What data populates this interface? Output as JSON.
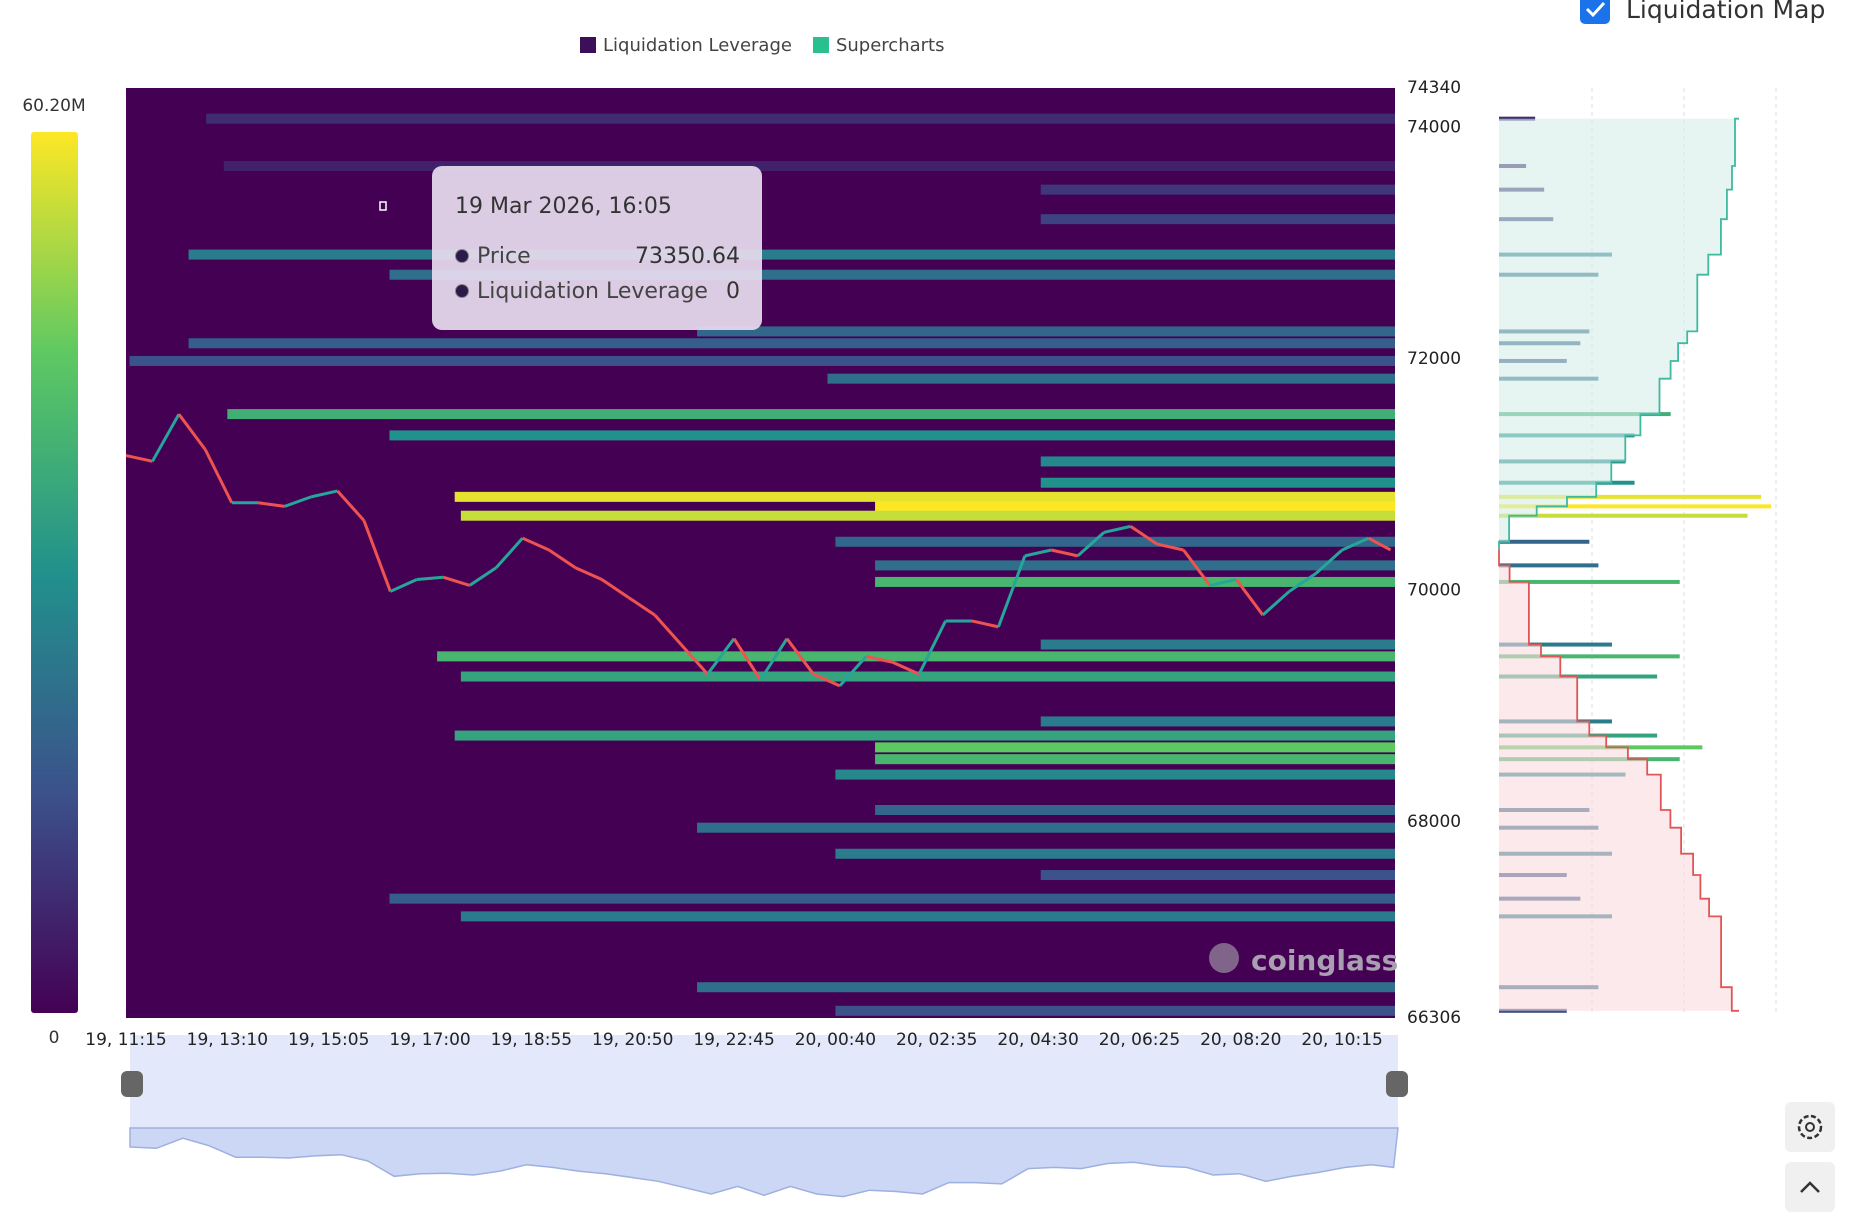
{
  "chart_data": {
    "type": "heatmap",
    "legend": [
      {
        "name": "Liquidation Leverage",
        "color": "#3b0f5a"
      },
      {
        "name": "Supercharts",
        "color": "#2bbf8f"
      }
    ],
    "toggle": {
      "label": "Liquidation Map",
      "checked": true
    },
    "watermark": "coinglass",
    "colorbar": {
      "range": [
        0,
        60200000
      ],
      "ticks": [
        {
          "value": 60200000,
          "label": "60.20M"
        },
        0
      ]
    },
    "ylim": [
      66306,
      74340
    ],
    "yticks": [
      74340,
      74000,
      72000,
      70000,
      68000,
      66306
    ],
    "xlim": [
      "19, 11:15",
      "20, 11:15"
    ],
    "xticks": [
      "19, 11:15",
      "19, 13:10",
      "19, 15:05",
      "19, 17:00",
      "19, 18:55",
      "19, 20:50",
      "19, 22:45",
      "20, 00:40",
      "20, 02:35",
      "20, 04:30",
      "20, 06:25",
      "20, 08:20",
      "20, 10:15"
    ],
    "up_color": "#26a69a",
    "down_color": "#ef5350",
    "series": [
      {
        "name": "Price",
        "x": [
          "19, 11:15",
          "19, 11:45",
          "19, 12:15",
          "19, 12:45",
          "19, 13:15",
          "19, 13:45",
          "19, 14:15",
          "19, 14:45",
          "19, 15:15",
          "19, 15:45",
          "19, 16:15",
          "19, 16:45",
          "19, 17:15",
          "19, 17:45",
          "19, 18:15",
          "19, 18:45",
          "19, 19:15",
          "19, 19:45",
          "19, 20:15",
          "19, 20:45",
          "19, 21:15",
          "19, 21:45",
          "19, 22:15",
          "19, 22:45",
          "19, 23:15",
          "19, 23:45",
          "20, 00:15",
          "20, 00:45",
          "20, 01:15",
          "20, 01:45",
          "20, 02:15",
          "20, 02:45",
          "20, 03:15",
          "20, 03:45",
          "20, 04:15",
          "20, 04:45",
          "20, 05:15",
          "20, 05:45",
          "20, 06:15",
          "20, 06:45",
          "20, 07:15",
          "20, 07:45",
          "20, 08:15",
          "20, 08:45",
          "20, 09:15",
          "20, 09:45",
          "20, 10:15",
          "20, 10:45",
          "20, 11:10"
        ],
        "values": [
          71165,
          71115,
          71522,
          71216,
          70757,
          70757,
          70726,
          70808,
          70859,
          70604,
          69991,
          70094,
          70114,
          70043,
          70196,
          70451,
          70349,
          70196,
          70094,
          69940,
          69787,
          69532,
          69277,
          69583,
          69226,
          69583,
          69277,
          69175,
          69430,
          69379,
          69277,
          69736,
          69736,
          69685,
          70298,
          70349,
          70298,
          70502,
          70553,
          70400,
          70349,
          70043,
          70094,
          69787,
          69991,
          70145,
          70349,
          70451,
          70349
        ]
      }
    ],
    "bands": [
      {
        "price": 74075,
        "start": "19, 12:46",
        "value": 8000000
      },
      {
        "price": 73666,
        "start": "19, 13:06",
        "value": 6000000
      },
      {
        "price": 73462,
        "start": "20, 04:33",
        "value": 10000000
      },
      {
        "price": 73207,
        "start": "20, 04:33",
        "value": 12000000
      },
      {
        "price": 72901,
        "start": "19, 12:26",
        "value": 25000000
      },
      {
        "price": 72727,
        "start": "19, 16:14",
        "value": 22000000
      },
      {
        "price": 72237,
        "start": "19, 22:03",
        "value": 20000000
      },
      {
        "price": 72135,
        "start": "19, 12:26",
        "value": 18000000
      },
      {
        "price": 71982,
        "start": "19, 11:19",
        "value": 15000000
      },
      {
        "price": 71829,
        "start": "20, 00:31",
        "value": 22000000
      },
      {
        "price": 71523,
        "start": "19, 13:10",
        "value": 38000000
      },
      {
        "price": 71339,
        "start": "19, 16:14",
        "value": 30000000
      },
      {
        "price": 71114,
        "start": "20, 04:33",
        "value": 28000000
      },
      {
        "price": 70930,
        "start": "20, 04:33",
        "value": 30000000
      },
      {
        "price": 70808,
        "start": "19, 17:28",
        "value": 58000000
      },
      {
        "price": 70726,
        "start": "20, 01:25",
        "value": 60200000
      },
      {
        "price": 70645,
        "start": "19, 17:35",
        "value": 55000000
      },
      {
        "price": 70420,
        "start": "20, 00:40",
        "value": 20000000
      },
      {
        "price": 70216,
        "start": "20, 01:25",
        "value": 22000000
      },
      {
        "price": 70073,
        "start": "20, 01:25",
        "value": 40000000
      },
      {
        "price": 69532,
        "start": "20, 04:33",
        "value": 25000000
      },
      {
        "price": 69430,
        "start": "19, 17:08",
        "value": 40000000
      },
      {
        "price": 69256,
        "start": "19, 17:35",
        "value": 35000000
      },
      {
        "price": 68868,
        "start": "20, 04:33",
        "value": 25000000
      },
      {
        "price": 68746,
        "start": "19, 17:28",
        "value": 35000000
      },
      {
        "price": 68644,
        "start": "20, 01:25",
        "value": 45000000
      },
      {
        "price": 68542,
        "start": "20, 01:25",
        "value": 40000000
      },
      {
        "price": 68409,
        "start": "20, 00:40",
        "value": 28000000
      },
      {
        "price": 68103,
        "start": "20, 01:25",
        "value": 20000000
      },
      {
        "price": 67950,
        "start": "19, 22:03",
        "value": 22000000
      },
      {
        "price": 67725,
        "start": "20, 00:40",
        "value": 25000000
      },
      {
        "price": 67541,
        "start": "20, 04:33",
        "value": 15000000
      },
      {
        "price": 67337,
        "start": "19, 16:14",
        "value": 18000000
      },
      {
        "price": 67184,
        "start": "19, 17:35",
        "value": 25000000
      },
      {
        "price": 66572,
        "start": "19, 22:03",
        "value": 22000000
      },
      {
        "price": 66368,
        "start": "20, 00:40",
        "value": 15000000
      }
    ],
    "tooltip": {
      "title": "19 Mar 2026, 16:05",
      "rows": [
        {
          "label": "Price",
          "value": 73350.64
        },
        {
          "label": "Liquidation Leverage",
          "value": 0
        }
      ]
    }
  }
}
